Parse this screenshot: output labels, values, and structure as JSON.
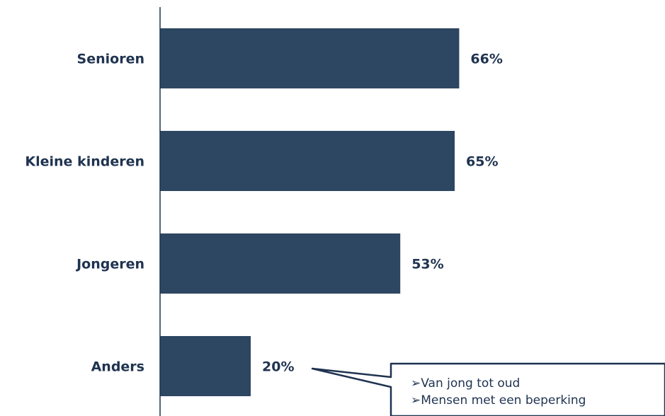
{
  "chart_data": {
    "type": "bar",
    "orientation": "horizontal",
    "categories": [
      "Senioren",
      "Kleine kinderen",
      "Jongeren",
      "Anders"
    ],
    "values": [
      66,
      65,
      53,
      20
    ],
    "value_labels": [
      "66%",
      "65%",
      "53%",
      "20%"
    ],
    "unit": "%",
    "xlim": [
      0,
      100
    ],
    "grid": false,
    "legend": "none",
    "bar_color": "#2d4661",
    "text_color": "#1f3350",
    "annotation": {
      "target": "Anders",
      "items": [
        "Van jong tot oud",
        "Mensen met een beperking"
      ],
      "bullet": "➢"
    }
  }
}
